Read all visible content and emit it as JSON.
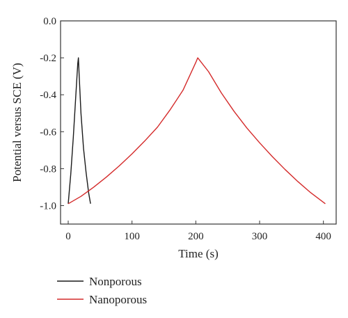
{
  "chart_data": {
    "type": "line",
    "xlabel": "Time (s)",
    "ylabel": "Potential versus SCE (V)",
    "xlim": [
      -12,
      420
    ],
    "ylim": [
      -1.1,
      0.0
    ],
    "x_ticks": [
      0,
      100,
      200,
      300,
      400
    ],
    "x_tick_labels": [
      "0",
      "100",
      "200",
      "300",
      "400"
    ],
    "y_ticks": [
      0.0,
      -0.2,
      -0.4,
      -0.6,
      -0.8,
      -1.0
    ],
    "y_tick_labels": [
      "0.0",
      "-0.2",
      "-0.4",
      "-0.6",
      "-0.8",
      "-1.0"
    ],
    "grid": false,
    "legend_position": "bottom-left, below plot",
    "series": [
      {
        "name": "Nonporous",
        "color": "#1a1a1a",
        "x": [
          0,
          4,
          8,
          12,
          15,
          16,
          17,
          20,
          24,
          28,
          32,
          35
        ],
        "y": [
          -0.99,
          -0.83,
          -0.63,
          -0.4,
          -0.23,
          -0.2,
          -0.28,
          -0.5,
          -0.69,
          -0.82,
          -0.93,
          -0.99
        ]
      },
      {
        "name": "Nanoporous",
        "color": "#d42a2a",
        "x": [
          0,
          20,
          40,
          60,
          80,
          100,
          120,
          140,
          160,
          180,
          200,
          203,
          220,
          240,
          260,
          280,
          300,
          320,
          340,
          360,
          380,
          403
        ],
        "y": [
          -0.99,
          -0.95,
          -0.9,
          -0.845,
          -0.785,
          -0.72,
          -0.65,
          -0.575,
          -0.48,
          -0.375,
          -0.225,
          -0.2,
          -0.275,
          -0.39,
          -0.49,
          -0.58,
          -0.66,
          -0.735,
          -0.805,
          -0.87,
          -0.93,
          -0.99
        ]
      }
    ]
  }
}
